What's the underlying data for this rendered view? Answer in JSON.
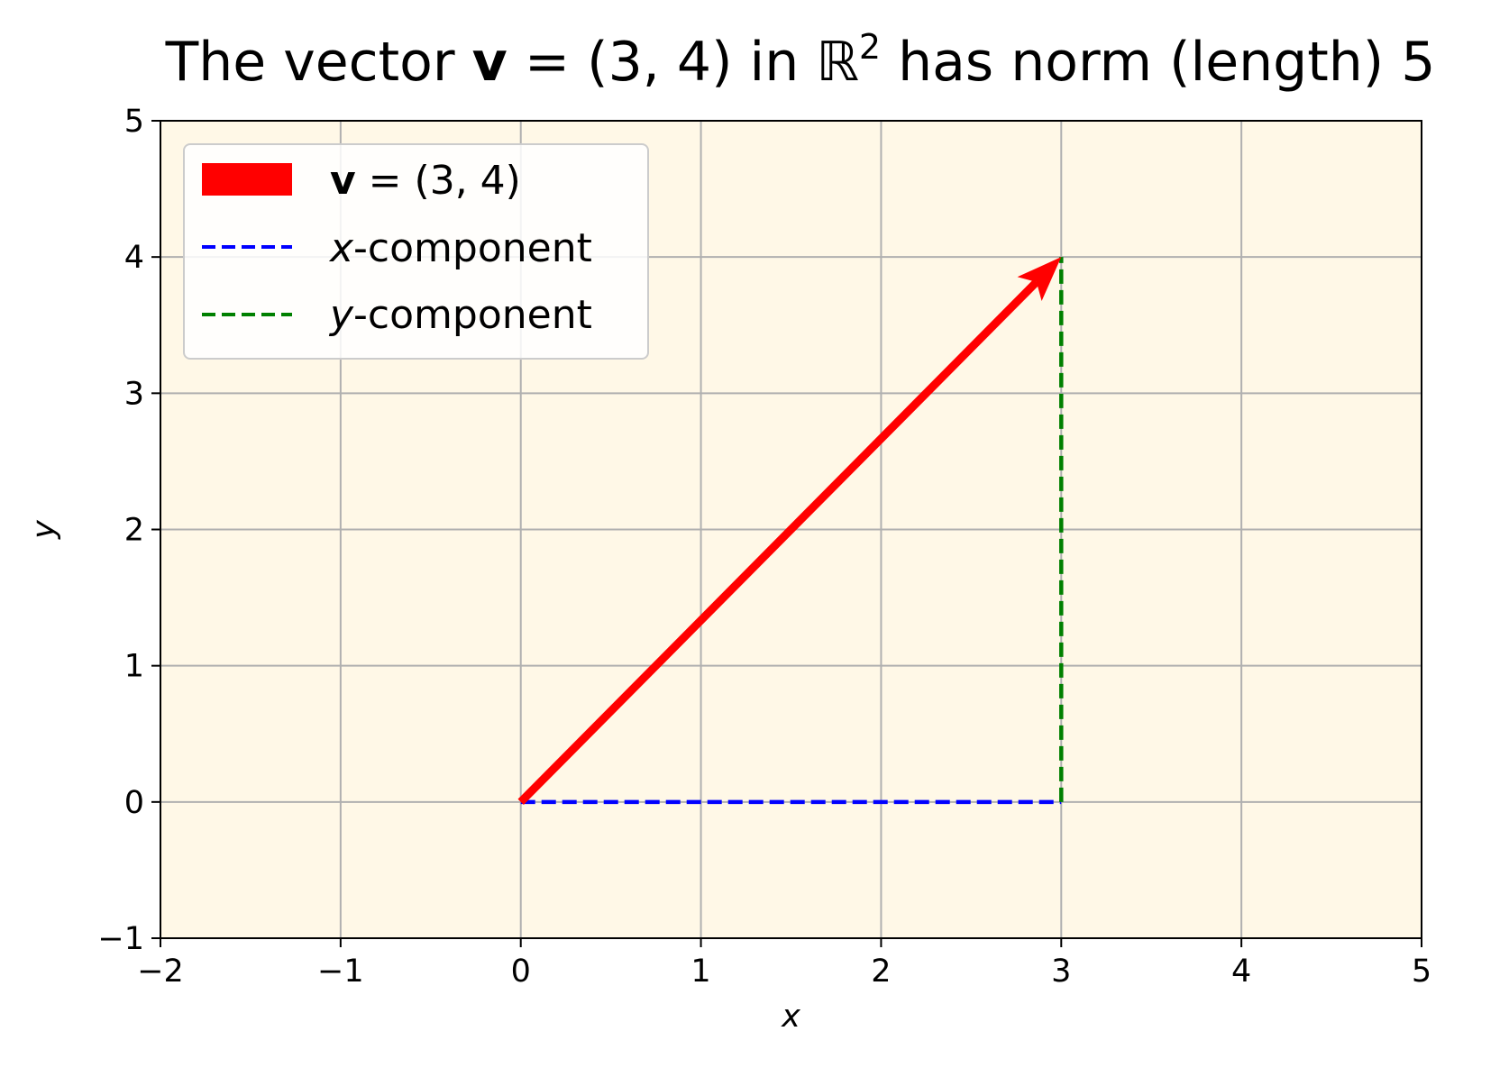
{
  "chart_data": {
    "type": "line",
    "title": {
      "before": "The vector ",
      "bold": "v",
      "middle": " = (3, 4) in ",
      "blackboard": "ℝ",
      "superscript": "2",
      "after": " has norm (length) 5"
    },
    "xlabel": "x",
    "ylabel": "y",
    "xlim": [
      -2,
      5
    ],
    "ylim": [
      -1,
      5
    ],
    "xticks": [
      -2,
      -1,
      0,
      1,
      2,
      3,
      4,
      5
    ],
    "yticks": [
      -1,
      0,
      1,
      2,
      3,
      4,
      5
    ],
    "xtick_labels": [
      "−2",
      "−1",
      "0",
      "1",
      "2",
      "3",
      "4",
      "5"
    ],
    "ytick_labels": [
      "−1",
      "0",
      "1",
      "2",
      "3",
      "4",
      "5"
    ],
    "grid": true,
    "legend_position": "top-left",
    "background_color": "#fff8e7",
    "series": [
      {
        "kind": "arrow",
        "label_bold": "v",
        "label_rest": " = (3, 4)",
        "color": "#ff0000",
        "x": [
          0,
          3
        ],
        "y": [
          0,
          4
        ]
      },
      {
        "kind": "dashed",
        "label_italic": "x",
        "label_rest": "-component",
        "color": "#0000ff",
        "x": [
          0,
          3
        ],
        "y": [
          0,
          0
        ]
      },
      {
        "kind": "dashed",
        "label_italic": "y",
        "label_rest": "-component",
        "color": "#008000",
        "x": [
          3,
          3
        ],
        "y": [
          0,
          4
        ]
      }
    ]
  }
}
